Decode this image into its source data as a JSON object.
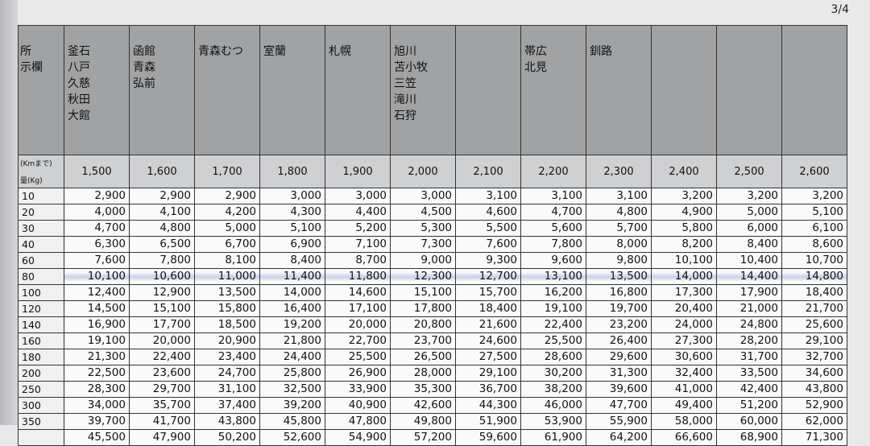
{
  "page_number": "3/4",
  "table": {
    "corner_labels": {
      "header": [
        "所",
        "示欄"
      ],
      "distance": "(Kmまで)",
      "weight": "量(Kg)"
    },
    "columns": [
      {
        "places": [
          "釜石",
          "八戸",
          "久慈",
          "秋田",
          "大館"
        ],
        "distance": "1,500"
      },
      {
        "places": [
          "函館",
          "青森",
          "弘前"
        ],
        "distance": "1,600"
      },
      {
        "places": [
          "青森むつ"
        ],
        "distance": "1,700"
      },
      {
        "places": [
          "室蘭"
        ],
        "distance": "1,800"
      },
      {
        "places": [
          "札幌"
        ],
        "distance": "1,900"
      },
      {
        "places": [
          "旭川",
          "苫小牧",
          "三笠",
          "滝川",
          "石狩"
        ],
        "distance": "2,000"
      },
      {
        "places": [],
        "distance": "2,100"
      },
      {
        "places": [
          "帯広",
          "北見"
        ],
        "distance": "2,200"
      },
      {
        "places": [
          "釧路"
        ],
        "distance": "2,300"
      },
      {
        "places": [],
        "distance": "2,400"
      },
      {
        "places": [],
        "distance": "2,500"
      },
      {
        "places": [],
        "distance": "2,600"
      }
    ],
    "rows": [
      {
        "weight": "10",
        "values": [
          "2,900",
          "2,900",
          "2,900",
          "3,000",
          "3,000",
          "3,000",
          "3,100",
          "3,100",
          "3,100",
          "3,200",
          "3,200",
          "3,200"
        ]
      },
      {
        "weight": "20",
        "values": [
          "4,000",
          "4,100",
          "4,200",
          "4,300",
          "4,400",
          "4,500",
          "4,600",
          "4,700",
          "4,800",
          "4,900",
          "5,000",
          "5,100"
        ]
      },
      {
        "weight": "30",
        "values": [
          "4,700",
          "4,800",
          "5,000",
          "5,100",
          "5,200",
          "5,300",
          "5,500",
          "5,600",
          "5,700",
          "5,800",
          "6,000",
          "6,100"
        ]
      },
      {
        "weight": "40",
        "values": [
          "6,300",
          "6,500",
          "6,700",
          "6,900",
          "7,100",
          "7,300",
          "7,600",
          "7,800",
          "8,000",
          "8,200",
          "8,400",
          "8,600"
        ]
      },
      {
        "weight": "60",
        "values": [
          "7,600",
          "7,800",
          "8,100",
          "8,400",
          "8,700",
          "9,000",
          "9,300",
          "9,600",
          "9,800",
          "10,100",
          "10,400",
          "10,700"
        ]
      },
      {
        "weight": "80",
        "values": [
          "10,100",
          "10,600",
          "11,000",
          "11,400",
          "11,800",
          "12,300",
          "12,700",
          "13,100",
          "13,500",
          "14,000",
          "14,400",
          "14,800"
        ]
      },
      {
        "weight": "100",
        "values": [
          "12,400",
          "12,900",
          "13,500",
          "14,000",
          "14,600",
          "15,100",
          "15,700",
          "16,200",
          "16,800",
          "17,300",
          "17,900",
          "18,400"
        ]
      },
      {
        "weight": "120",
        "values": [
          "14,500",
          "15,100",
          "15,800",
          "16,400",
          "17,100",
          "17,800",
          "18,400",
          "19,100",
          "19,700",
          "20,400",
          "21,000",
          "21,700"
        ]
      },
      {
        "weight": "140",
        "values": [
          "16,900",
          "17,700",
          "18,500",
          "19,200",
          "20,000",
          "20,800",
          "21,600",
          "22,400",
          "23,200",
          "24,000",
          "24,800",
          "25,600"
        ]
      },
      {
        "weight": "160",
        "values": [
          "19,100",
          "20,000",
          "20,900",
          "21,800",
          "22,700",
          "23,700",
          "24,600",
          "25,500",
          "26,400",
          "27,300",
          "28,200",
          "29,100"
        ]
      },
      {
        "weight": "180",
        "values": [
          "21,300",
          "22,400",
          "23,400",
          "24,400",
          "25,500",
          "26,500",
          "27,500",
          "28,600",
          "29,600",
          "30,600",
          "31,700",
          "32,700"
        ]
      },
      {
        "weight": "200",
        "values": [
          "22,500",
          "23,600",
          "24,700",
          "25,800",
          "26,900",
          "28,000",
          "29,100",
          "30,200",
          "31,300",
          "32,400",
          "33,500",
          "34,600"
        ]
      },
      {
        "weight": "250",
        "values": [
          "28,300",
          "29,700",
          "31,100",
          "32,500",
          "33,900",
          "35,300",
          "36,700",
          "38,200",
          "39,600",
          "41,000",
          "42,400",
          "43,800"
        ]
      },
      {
        "weight": "300",
        "values": [
          "34,000",
          "35,700",
          "37,400",
          "39,200",
          "40,900",
          "42,600",
          "44,300",
          "46,000",
          "47,700",
          "49,400",
          "51,200",
          "52,900"
        ]
      },
      {
        "weight": "350",
        "values": [
          "39,700",
          "41,700",
          "43,800",
          "45,800",
          "47,800",
          "49,800",
          "51,900",
          "53,900",
          "55,900",
          "58,000",
          "60,000",
          "62,000"
        ]
      },
      {
        "values": [
          "45,500",
          "47,900",
          "50,200",
          "52,600",
          "54,900",
          "57,200",
          "59,600",
          "61,900",
          "64,200",
          "66,600",
          "68,900",
          "71,300"
        ]
      }
    ]
  }
}
